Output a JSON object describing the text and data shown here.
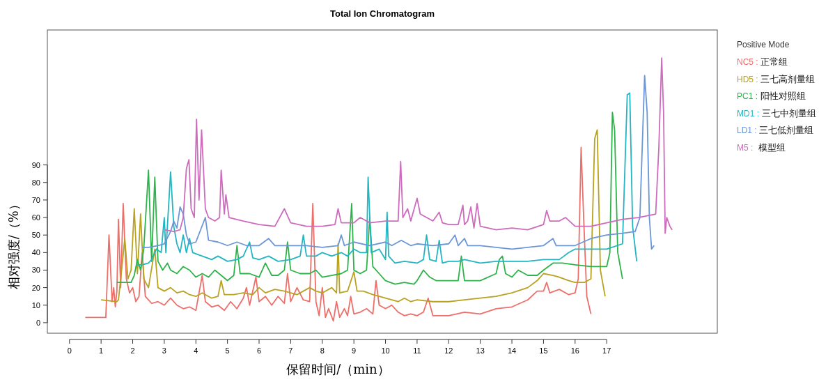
{
  "chart_data": {
    "type": "line",
    "title": "Total Ion Chromatogram",
    "xlabel": "保留时间/（min）",
    "ylabel": "相对强度/（%）",
    "legend_title": "Positive Mode",
    "legend": "right",
    "grid": false,
    "xlim": [
      -0.7,
      20.5
    ],
    "ylim": [
      -6,
      167
    ],
    "xticks": [
      0,
      1,
      2,
      3,
      4,
      5,
      6,
      7,
      8,
      9,
      10,
      11,
      12,
      13,
      14,
      15,
      16,
      17
    ],
    "yticks": [
      0,
      10,
      20,
      30,
      40,
      50,
      60,
      70,
      80,
      90
    ],
    "series": [
      {
        "name": "NC5 : 正常组",
        "color": "#ec6f6a",
        "x": [
          0.5,
          1.15,
          1.25,
          1.35,
          1.4,
          1.45,
          1.5,
          1.55,
          1.62,
          1.7,
          1.8,
          1.9,
          2.0,
          2.1,
          2.2,
          2.3,
          2.4,
          2.6,
          2.8,
          3.0,
          3.2,
          3.4,
          3.6,
          3.8,
          4.0,
          4.2,
          4.3,
          4.5,
          4.7,
          4.9,
          5.1,
          5.3,
          5.5,
          5.6,
          5.7,
          5.9,
          6.0,
          6.2,
          6.4,
          6.6,
          6.8,
          6.9,
          7.0,
          7.2,
          7.4,
          7.6,
          7.7,
          7.8,
          7.9,
          8.0,
          8.1,
          8.2,
          8.35,
          8.45,
          8.55,
          8.7,
          8.8,
          8.9,
          9.0,
          9.2,
          9.4,
          9.6,
          9.7,
          9.8,
          10.0,
          10.2,
          10.4,
          10.6,
          10.8,
          11.0,
          11.2,
          11.35,
          11.5,
          12.0,
          12.5,
          13.0,
          13.5,
          14.0,
          14.5,
          14.8,
          15.0,
          15.1,
          15.2,
          15.5,
          15.8,
          16.0,
          16.1,
          16.19,
          16.27,
          16.37,
          16.5
        ],
        "values": [
          3,
          3,
          50,
          12,
          20,
          9,
          18,
          59,
          20,
          68,
          25,
          17,
          20,
          12,
          15,
          40,
          15,
          11,
          12,
          10,
          14,
          10,
          8,
          9,
          7,
          27,
          12,
          9,
          10,
          7,
          12,
          8,
          14,
          20,
          10,
          26,
          12,
          15,
          10,
          15,
          11,
          28,
          12,
          20,
          13,
          12,
          68,
          12,
          4,
          20,
          3,
          8,
          1,
          12,
          3,
          8,
          4,
          15,
          5,
          6,
          8,
          5,
          24,
          10,
          8,
          10,
          6,
          4,
          5,
          4,
          6,
          14,
          4,
          4,
          6,
          5,
          8,
          9,
          13,
          18,
          18,
          23,
          17,
          19,
          16,
          17,
          25,
          100,
          60,
          15,
          5
        ]
      },
      {
        "name": "HD5 : 三七高剂量组",
        "color": "#b8a21f",
        "x": [
          1.0,
          1.5,
          1.55,
          1.65,
          1.75,
          1.85,
          1.95,
          2.05,
          2.15,
          2.25,
          2.35,
          2.5,
          2.7,
          2.8,
          3.0,
          3.2,
          3.4,
          3.6,
          3.8,
          4.0,
          4.2,
          4.5,
          4.7,
          4.8,
          4.9,
          5.2,
          5.5,
          5.8,
          6.0,
          6.2,
          6.5,
          6.8,
          7.0,
          7.2,
          7.4,
          7.6,
          7.8,
          8.0,
          8.3,
          8.45,
          8.5,
          8.55,
          8.8,
          9.0,
          9.1,
          9.3,
          9.6,
          9.8,
          10.0,
          10.4,
          10.6,
          10.8,
          11.0,
          11.5,
          12.0,
          12.5,
          13.0,
          13.5,
          14.0,
          14.5,
          14.8,
          15.0,
          15.3,
          15.5,
          15.8,
          16.0,
          16.3,
          16.5,
          16.62,
          16.7,
          16.8,
          16.95
        ],
        "values": [
          13,
          12,
          13,
          30,
          48,
          25,
          30,
          65,
          28,
          62,
          25,
          20,
          42,
          20,
          18,
          20,
          17,
          18,
          16,
          15,
          17,
          14,
          15,
          24,
          16,
          16,
          17,
          16,
          20,
          17,
          19,
          18,
          17,
          16,
          18,
          20,
          18,
          17,
          20,
          17,
          45,
          17,
          18,
          29,
          18,
          18,
          16,
          15,
          14,
          12,
          14,
          12,
          13,
          12,
          12,
          13,
          14,
          15,
          17,
          20,
          24,
          28,
          27,
          26,
          24,
          23,
          23,
          25,
          105,
          110,
          30,
          15
        ]
      },
      {
        "name": "PC1 : 阳性对照组",
        "color": "#2eb34a",
        "x": [
          1.5,
          1.95,
          2.05,
          2.15,
          2.25,
          2.35,
          2.5,
          2.6,
          2.7,
          2.8,
          2.95,
          3.1,
          3.2,
          3.4,
          3.6,
          3.8,
          4.0,
          4.2,
          4.4,
          4.6,
          4.8,
          5.0,
          5.2,
          5.3,
          5.4,
          5.7,
          6.0,
          6.2,
          6.4,
          6.6,
          6.8,
          6.9,
          7.0,
          7.3,
          7.6,
          7.8,
          8.0,
          8.3,
          8.6,
          8.8,
          8.93,
          9.0,
          9.2,
          9.4,
          9.5,
          9.6,
          9.8,
          10.0,
          10.3,
          10.6,
          10.9,
          11.0,
          11.2,
          11.4,
          11.6,
          12.0,
          12.3,
          12.4,
          12.5,
          13.0,
          13.5,
          13.6,
          13.7,
          13.8,
          14.0,
          14.2,
          14.5,
          14.8,
          15.0,
          15.3,
          15.6,
          16.0,
          16.5,
          17.0,
          17.1,
          17.18,
          17.25,
          17.35,
          17.5
        ],
        "values": [
          23,
          23,
          27,
          36,
          30,
          42,
          87,
          35,
          83,
          35,
          30,
          34,
          30,
          28,
          32,
          30,
          26,
          28,
          26,
          30,
          27,
          24,
          27,
          44,
          28,
          28,
          26,
          34,
          27,
          27,
          30,
          46,
          30,
          28,
          28,
          30,
          26,
          27,
          28,
          30,
          68,
          30,
          28,
          30,
          60,
          32,
          28,
          24,
          22,
          23,
          22,
          24,
          30,
          26,
          24,
          24,
          24,
          38,
          24,
          24,
          28,
          36,
          38,
          28,
          26,
          30,
          27,
          27,
          30,
          34,
          34,
          33,
          32,
          32,
          40,
          120,
          110,
          40,
          25
        ]
      },
      {
        "name": "MD1 : 三七中剂量组",
        "color": "#22b5c2",
        "x": [
          2.1,
          2.3,
          2.5,
          2.6,
          2.75,
          2.9,
          3.0,
          3.05,
          3.2,
          3.3,
          3.4,
          3.5,
          3.6,
          3.7,
          3.8,
          3.9,
          4.2,
          4.5,
          4.7,
          5.0,
          5.3,
          5.5,
          5.7,
          5.8,
          6.0,
          6.3,
          6.6,
          7.0,
          7.3,
          7.4,
          7.5,
          7.8,
          8.0,
          8.3,
          8.6,
          8.8,
          9.0,
          9.2,
          9.4,
          9.45,
          9.55,
          9.8,
          10.0,
          10.05,
          10.1,
          10.3,
          10.6,
          11.0,
          11.2,
          11.3,
          11.4,
          11.6,
          11.7,
          11.8,
          12.0,
          12.3,
          12.5,
          13.0,
          13.5,
          14.0,
          14.5,
          15.0,
          15.5,
          15.8,
          16.0,
          16.5,
          17.0,
          17.5,
          17.65,
          17.73,
          17.82,
          17.95
        ],
        "values": [
          33,
          33,
          34,
          36,
          42,
          40,
          60,
          40,
          86,
          55,
          45,
          40,
          50,
          40,
          48,
          40,
          38,
          36,
          38,
          35,
          36,
          38,
          46,
          37,
          36,
          38,
          35,
          36,
          38,
          50,
          38,
          38,
          40,
          38,
          40,
          38,
          42,
          40,
          40,
          83,
          40,
          42,
          36,
          63,
          38,
          34,
          35,
          34,
          36,
          50,
          36,
          35,
          47,
          34,
          35,
          35,
          36,
          34,
          35,
          35,
          35,
          36,
          36,
          40,
          42,
          42,
          42,
          45,
          130,
          131,
          55,
          35
        ]
      },
      {
        "name": "LD1 : 三七低剂量组",
        "color": "#6b96d8",
        "x": [
          2.3,
          2.5,
          2.8,
          3.0,
          3.2,
          3.3,
          3.4,
          3.5,
          3.6,
          3.7,
          3.8,
          4.0,
          4.3,
          4.4,
          4.7,
          5.0,
          5.3,
          5.6,
          6.0,
          6.3,
          6.5,
          7.0,
          7.5,
          8.0,
          8.5,
          8.6,
          8.7,
          9.0,
          9.5,
          10.0,
          10.2,
          10.5,
          10.8,
          11.0,
          11.5,
          12.0,
          12.2,
          12.3,
          12.5,
          12.6,
          13.0,
          13.5,
          14.0,
          14.5,
          15.0,
          15.3,
          15.4,
          16.0,
          16.5,
          17.0,
          17.5,
          17.9,
          18.05,
          18.2,
          18.28,
          18.35,
          18.42,
          18.5
        ],
        "values": [
          43,
          43,
          44,
          45,
          52,
          58,
          54,
          66,
          62,
          50,
          45,
          46,
          60,
          47,
          46,
          44,
          46,
          44,
          44,
          48,
          44,
          44,
          44,
          43,
          44,
          50,
          44,
          46,
          44,
          46,
          44,
          47,
          44,
          45,
          44,
          45,
          50,
          44,
          48,
          44,
          44,
          43,
          42,
          43,
          44,
          48,
          44,
          44,
          48,
          50,
          51,
          52,
          60,
          141,
          120,
          60,
          42,
          44
        ]
      },
      {
        "name": "M5 :  模型组",
        "color": "#cd6bbd",
        "x": [
          3.0,
          3.3,
          3.5,
          3.6,
          3.7,
          3.78,
          3.85,
          3.95,
          4.02,
          4.1,
          4.18,
          4.3,
          4.4,
          4.6,
          4.75,
          4.8,
          4.9,
          4.95,
          5.05,
          5.5,
          6.0,
          6.5,
          6.8,
          7.0,
          7.5,
          8.0,
          8.4,
          8.5,
          8.6,
          9.0,
          9.2,
          9.5,
          10.0,
          10.4,
          10.48,
          10.55,
          10.7,
          10.8,
          11.0,
          11.1,
          11.3,
          11.5,
          11.7,
          11.8,
          12.0,
          12.3,
          12.45,
          12.5,
          12.6,
          12.7,
          12.8,
          12.9,
          13.0,
          13.5,
          14.0,
          14.5,
          15.0,
          15.1,
          15.2,
          15.5,
          15.7,
          16.0,
          16.5,
          17.0,
          17.5,
          18.0,
          18.55,
          18.65,
          18.74,
          18.8,
          18.85,
          18.9,
          19.0,
          19.07
        ],
        "values": [
          53,
          52,
          53,
          60,
          88,
          93,
          65,
          60,
          116,
          70,
          110,
          65,
          60,
          58,
          60,
          87,
          62,
          73,
          60,
          58,
          56,
          55,
          65,
          57,
          55,
          55,
          56,
          65,
          57,
          57,
          60,
          57,
          58,
          58,
          92,
          60,
          65,
          58,
          71,
          62,
          60,
          58,
          63,
          57,
          56,
          56,
          67,
          56,
          58,
          66,
          54,
          68,
          55,
          53,
          54,
          53,
          56,
          64,
          58,
          58,
          60,
          55,
          55,
          57,
          59,
          60,
          62,
          100,
          151,
          120,
          51,
          60,
          55,
          53
        ]
      }
    ]
  }
}
